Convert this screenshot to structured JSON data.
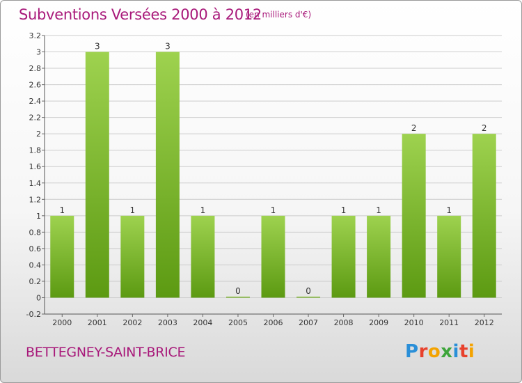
{
  "header": {
    "title": "Subventions Versées 2000 à 2012",
    "subtitle": "(en milliers d'€)"
  },
  "footer": {
    "location": "BETTEGNEY-SAINT-BRICE",
    "logo": {
      "text": "Proxiti",
      "letters": [
        {
          "char": "P",
          "color": "#2a8fd8"
        },
        {
          "char": "r",
          "color": "#e8412c"
        },
        {
          "char": "o",
          "color": "#f4a300"
        },
        {
          "char": "x",
          "color": "#3da53a"
        },
        {
          "char": "i",
          "color": "#2a8fd8"
        },
        {
          "char": "t",
          "color": "#e8412c"
        },
        {
          "char": "i",
          "color": "#f4a300"
        }
      ]
    }
  },
  "colors": {
    "title": "#a8197a",
    "bar_top": "#9ed24f",
    "bar_bottom": "#5c9a12",
    "axis_text": "#333333",
    "grid": "#cccccc"
  },
  "chart_data": {
    "type": "bar",
    "categories": [
      "2000",
      "2001",
      "2002",
      "2003",
      "2004",
      "2005",
      "2006",
      "2007",
      "2008",
      "2009",
      "2010",
      "2011",
      "2012"
    ],
    "values": [
      1,
      3,
      1,
      3,
      1,
      0,
      1,
      0,
      1,
      1,
      2,
      1,
      2
    ],
    "data_labels": [
      "1",
      "3",
      "1",
      "3",
      "1",
      "0",
      "1",
      "0",
      "1",
      "1",
      "2",
      "1",
      "2"
    ],
    "ylim": [
      -0.2,
      3.2
    ],
    "yticks": [
      -0.2,
      0,
      0.2,
      0.4,
      0.6,
      0.8,
      1,
      1.2,
      1.4,
      1.6,
      1.8,
      2,
      2.2,
      2.4,
      2.6,
      2.8,
      3,
      3.2
    ],
    "ytick_labels": [
      "-0.2",
      "0",
      "0.2",
      "0.4",
      "0.6",
      "0.8",
      "1",
      "1.2",
      "1.4",
      "1.6",
      "1.8",
      "2",
      "2.2",
      "2.4",
      "2.6",
      "2.8",
      "3",
      "3.2"
    ],
    "grid": true,
    "xlabel": "",
    "ylabel": ""
  }
}
